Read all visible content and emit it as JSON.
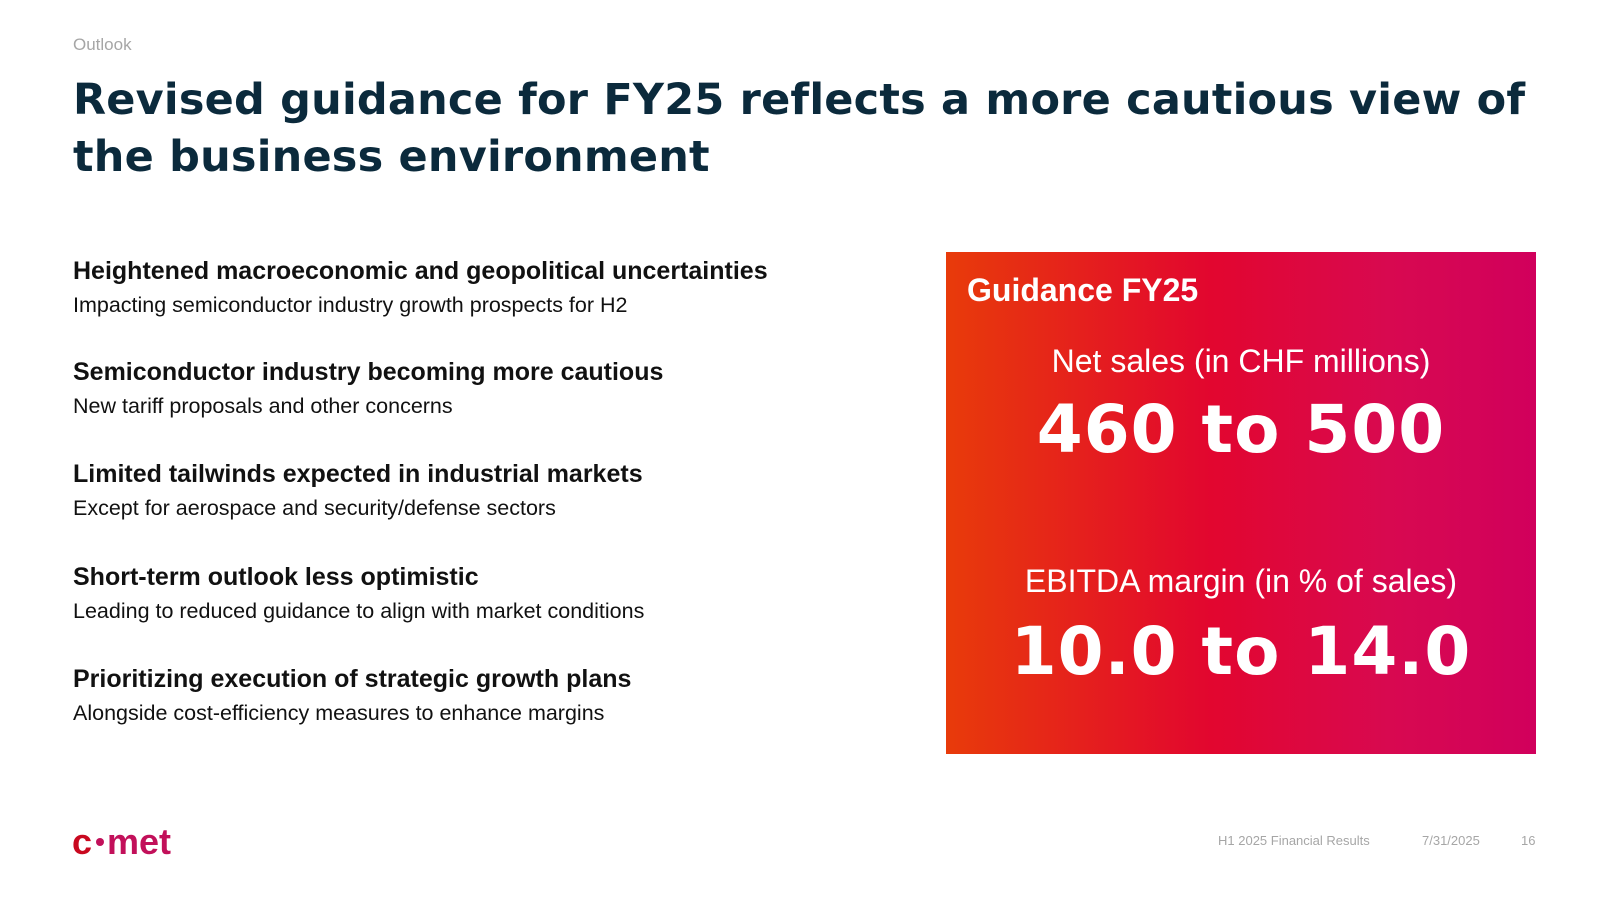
{
  "header": {
    "section_label": "Outlook",
    "title": "Revised guidance for FY25 reflects a more cautious view of the business environment"
  },
  "points": [
    {
      "heading": "Heightened macroeconomic and geopolitical uncertainties",
      "text": "Impacting semiconductor industry growth prospects for H2"
    },
    {
      "heading": "Semiconductor industry becoming more cautious",
      "text": "New tariff proposals and other concerns"
    },
    {
      "heading": "Limited tailwinds expected in industrial markets",
      "text": "Except for aerospace and security/defense sectors"
    },
    {
      "heading": "Short-term outlook less optimistic",
      "text": "Leading to reduced guidance to align with market conditions"
    },
    {
      "heading": "Prioritizing execution of strategic growth plans",
      "text": "Alongside cost-efficiency measures to enhance margins"
    }
  ],
  "guidance": {
    "title": "Guidance FY25",
    "net_sales_label": "Net sales (in CHF millions)",
    "net_sales_value": "460 to 500",
    "ebitda_label": "EBITDA margin (in % of sales)",
    "ebitda_value": "10.0 to 14.0",
    "gradient_colors": [
      "#e83b0a",
      "#e2062f",
      "#d1005c"
    ]
  },
  "logo": {
    "text": "comet",
    "color_primary": "#c9081f",
    "color_secondary": "#c2105a"
  },
  "footer": {
    "report_name": "H1 2025 Financial Results",
    "date": "7/31/2025",
    "page_number": "16"
  }
}
